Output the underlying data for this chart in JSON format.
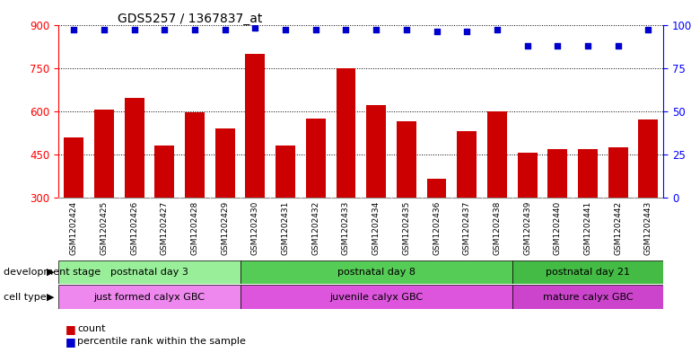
{
  "title": "GDS5257 / 1367837_at",
  "samples": [
    "GSM1202424",
    "GSM1202425",
    "GSM1202426",
    "GSM1202427",
    "GSM1202428",
    "GSM1202429",
    "GSM1202430",
    "GSM1202431",
    "GSM1202432",
    "GSM1202433",
    "GSM1202434",
    "GSM1202435",
    "GSM1202436",
    "GSM1202437",
    "GSM1202438",
    "GSM1202439",
    "GSM1202440",
    "GSM1202441",
    "GSM1202442",
    "GSM1202443"
  ],
  "counts": [
    510,
    605,
    645,
    480,
    595,
    540,
    800,
    480,
    575,
    750,
    620,
    565,
    365,
    530,
    600,
    455,
    470,
    470,
    475,
    570
  ],
  "percentiles": [
    97,
    97,
    97,
    97,
    97,
    97,
    98,
    97,
    97,
    97,
    97,
    97,
    96,
    96,
    97,
    88,
    88,
    88,
    88,
    97
  ],
  "bar_color": "#cc0000",
  "dot_color": "#0000cc",
  "ylim_left": [
    300,
    900
  ],
  "ylim_right": [
    0,
    100
  ],
  "yticks_left": [
    300,
    450,
    600,
    750,
    900
  ],
  "yticks_right": [
    0,
    25,
    50,
    75,
    100
  ],
  "groups": [
    {
      "label": "postnatal day 3",
      "start": 0,
      "end": 6,
      "color": "#99ee99"
    },
    {
      "label": "postnatal day 8",
      "start": 6,
      "end": 15,
      "color": "#55cc55"
    },
    {
      "label": "postnatal day 21",
      "start": 15,
      "end": 20,
      "color": "#44bb44"
    }
  ],
  "cell_types": [
    {
      "label": "just formed calyx GBC",
      "start": 0,
      "end": 6,
      "color": "#ee88ee"
    },
    {
      "label": "juvenile calyx GBC",
      "start": 6,
      "end": 15,
      "color": "#dd55dd"
    },
    {
      "label": "mature calyx GBC",
      "start": 15,
      "end": 20,
      "color": "#cc44cc"
    }
  ],
  "dev_stage_label": "development stage",
  "cell_type_label": "cell type",
  "legend_count_label": "count",
  "legend_percentile_label": "percentile rank within the sample",
  "background_color": "#ffffff",
  "xtick_bg_color": "#cccccc"
}
